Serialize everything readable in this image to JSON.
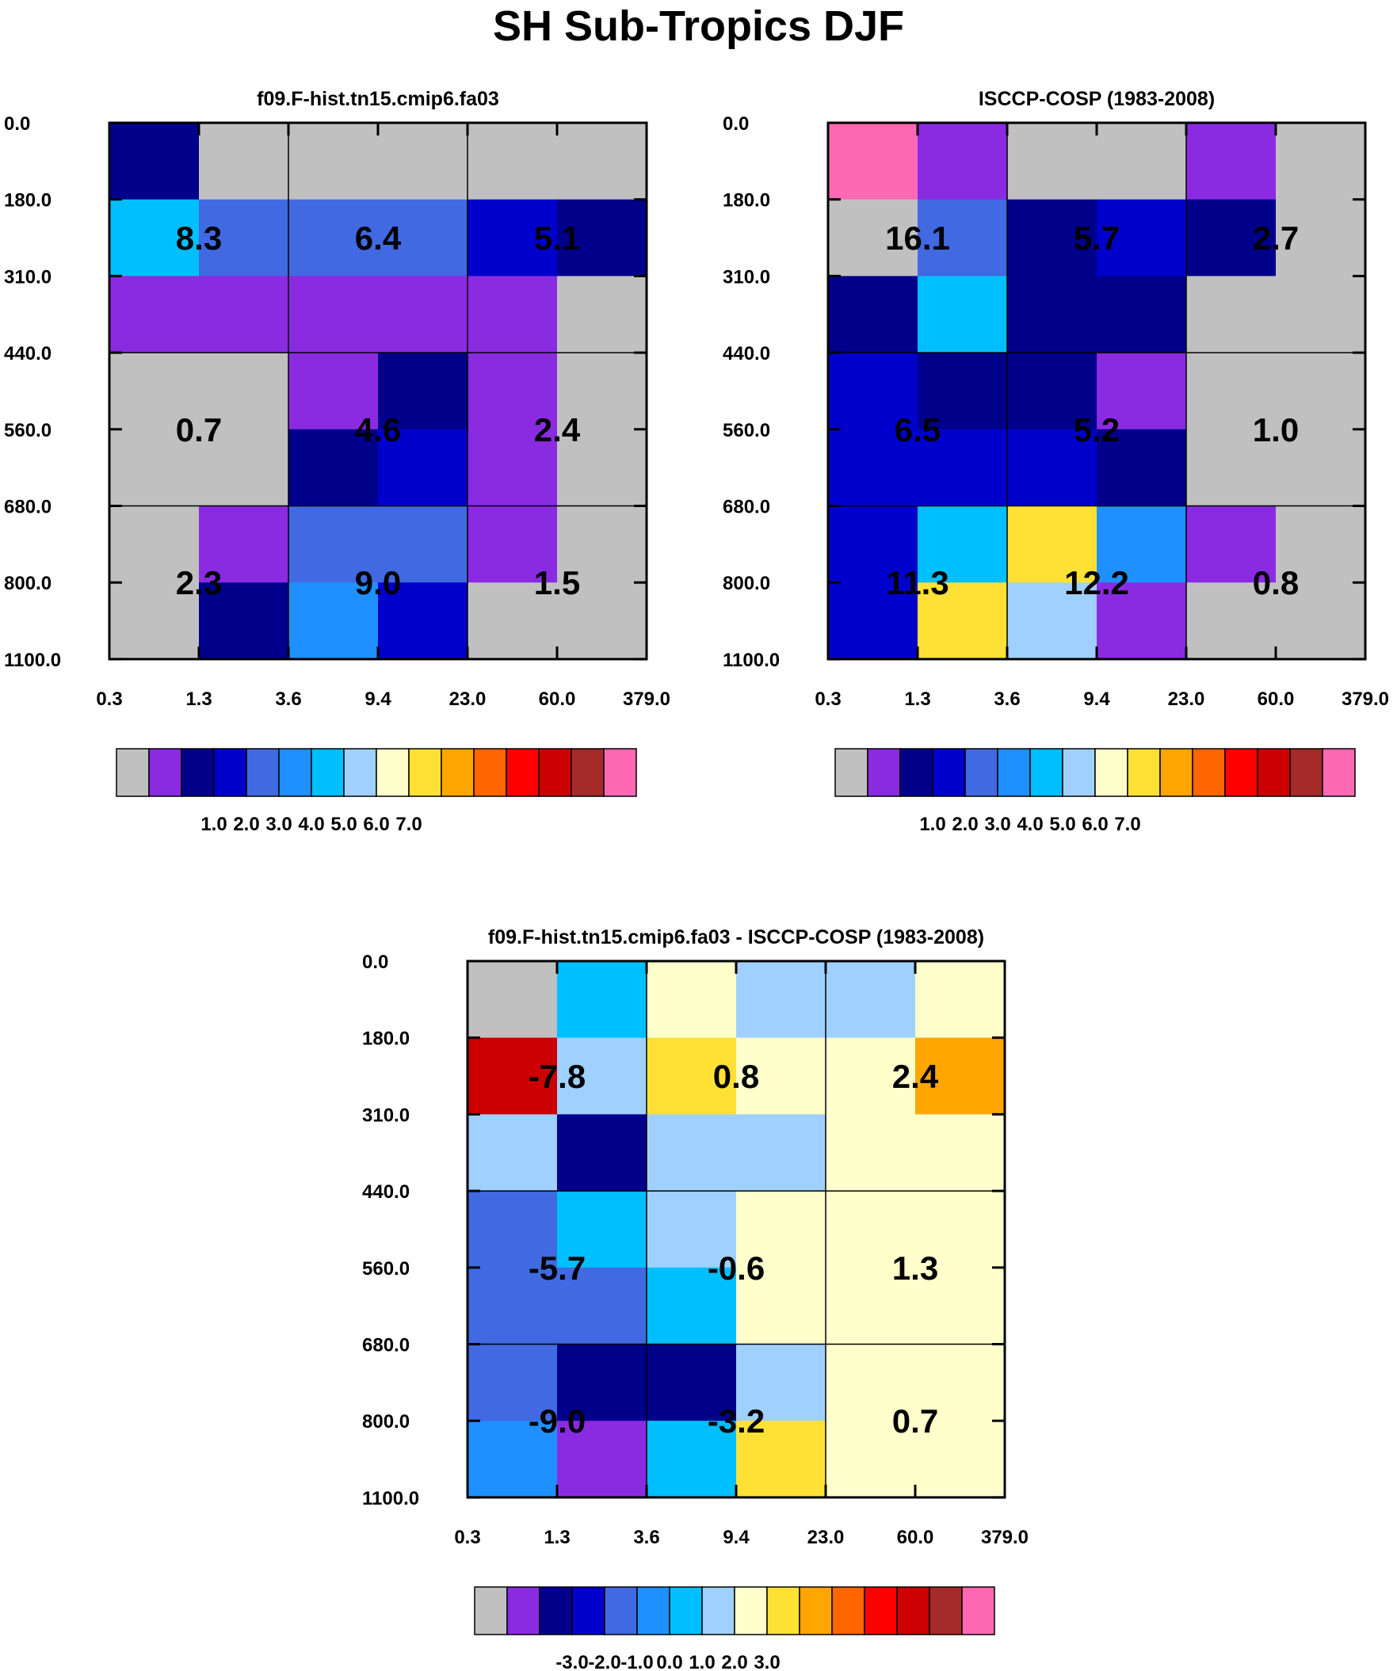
{
  "figure": {
    "title": "SH Sub-Tropics DJF"
  },
  "colors": {
    "palette": [
      "#c0c0c0",
      "#8a2be2",
      "#00008b",
      "#0000cd",
      "#4169e1",
      "#1e90ff",
      "#00bfff",
      "#a0d0ff",
      "#ffffcc",
      "#ffe135",
      "#ffa500",
      "#ff6600",
      "#ff0000",
      "#cc0000",
      "#a52a2a",
      "#ff69b4"
    ]
  },
  "chart_data": [
    {
      "type": "heatmap",
      "title": "f09.F-hist.tn15.cmip6.fa03",
      "xlabel": "",
      "ylabel": "",
      "x_ticks": [
        "0.3",
        "1.3",
        "3.6",
        "9.4",
        "23.0",
        "60.0",
        "379.0"
      ],
      "y_ticks": [
        "0.0",
        "180.0",
        "310.0",
        "440.0",
        "560.0",
        "680.0",
        "800.0",
        "1100.0"
      ],
      "cell_color_index": [
        [
          2,
          0,
          0,
          0,
          0,
          0
        ],
        [
          6,
          4,
          4,
          4,
          3,
          2
        ],
        [
          1,
          1,
          1,
          1,
          1,
          0
        ],
        [
          0,
          0,
          1,
          2,
          1,
          0
        ],
        [
          0,
          0,
          2,
          3,
          1,
          0
        ],
        [
          0,
          1,
          4,
          4,
          1,
          0
        ],
        [
          0,
          2,
          5,
          3,
          0,
          0
        ]
      ],
      "block_labels": [
        {
          "text": "8.3",
          "col": 1,
          "row": 1
        },
        {
          "text": "6.4",
          "col": 3,
          "row": 1
        },
        {
          "text": "5.1",
          "col": 5,
          "row": 1
        },
        {
          "text": "0.7",
          "col": 1,
          "row": 3.5
        },
        {
          "text": "4.6",
          "col": 3,
          "row": 3.5
        },
        {
          "text": "2.4",
          "col": 5,
          "row": 3.5
        },
        {
          "text": "2.3",
          "col": 1,
          "row": 5.5
        },
        {
          "text": "9.0",
          "col": 3,
          "row": 5.5
        },
        {
          "text": "1.5",
          "col": 5,
          "row": 5.5
        }
      ],
      "colorbar_labels": [
        "1.0",
        "2.0",
        "3.0",
        "4.0",
        "5.0",
        "6.0",
        "7.0"
      ]
    },
    {
      "type": "heatmap",
      "title": "ISCCP-COSP (1983-2008)",
      "xlabel": "",
      "ylabel": "",
      "x_ticks": [
        "0.3",
        "1.3",
        "3.6",
        "9.4",
        "23.0",
        "60.0",
        "379.0"
      ],
      "y_ticks": [
        "0.0",
        "180.0",
        "310.0",
        "440.0",
        "560.0",
        "680.0",
        "800.0",
        "1100.0"
      ],
      "cell_color_index": [
        [
          15,
          1,
          0,
          0,
          1,
          0
        ],
        [
          0,
          4,
          2,
          3,
          2,
          0
        ],
        [
          2,
          6,
          2,
          2,
          0,
          0
        ],
        [
          3,
          2,
          2,
          1,
          0,
          0
        ],
        [
          3,
          3,
          3,
          2,
          0,
          0
        ],
        [
          3,
          6,
          9,
          5,
          1,
          0
        ],
        [
          3,
          9,
          7,
          1,
          0,
          0
        ]
      ],
      "block_labels": [
        {
          "text": "16.1",
          "col": 1,
          "row": 1
        },
        {
          "text": "5.7",
          "col": 3,
          "row": 1
        },
        {
          "text": "2.7",
          "col": 5,
          "row": 1
        },
        {
          "text": "6.5",
          "col": 1,
          "row": 3.5
        },
        {
          "text": "5.2",
          "col": 3,
          "row": 3.5
        },
        {
          "text": "1.0",
          "col": 5,
          "row": 3.5
        },
        {
          "text": "11.3",
          "col": 1,
          "row": 5.5
        },
        {
          "text": "12.2",
          "col": 3,
          "row": 5.5
        },
        {
          "text": "0.8",
          "col": 5,
          "row": 5.5
        }
      ],
      "colorbar_labels": [
        "1.0",
        "2.0",
        "3.0",
        "4.0",
        "5.0",
        "6.0",
        "7.0"
      ]
    },
    {
      "type": "heatmap",
      "title": "f09.F-hist.tn15.cmip6.fa03 - ISCCP-COSP (1983-2008)",
      "xlabel": "",
      "ylabel": "",
      "x_ticks": [
        "0.3",
        "1.3",
        "3.6",
        "9.4",
        "23.0",
        "60.0",
        "379.0"
      ],
      "y_ticks": [
        "0.0",
        "180.0",
        "310.0",
        "440.0",
        "560.0",
        "680.0",
        "800.0",
        "1100.0"
      ],
      "cell_color_index": [
        [
          0,
          6,
          8,
          7,
          7,
          8
        ],
        [
          13,
          7,
          9,
          8,
          8,
          10
        ],
        [
          7,
          2,
          7,
          7,
          8,
          8
        ],
        [
          4,
          6,
          7,
          8,
          8,
          8
        ],
        [
          4,
          4,
          6,
          8,
          8,
          8
        ],
        [
          4,
          2,
          2,
          7,
          8,
          8
        ],
        [
          5,
          1,
          6,
          9,
          8,
          8
        ]
      ],
      "block_labels": [
        {
          "text": "-7.8",
          "col": 1,
          "row": 1
        },
        {
          "text": "0.8",
          "col": 3,
          "row": 1
        },
        {
          "text": "2.4",
          "col": 5,
          "row": 1
        },
        {
          "text": "-5.7",
          "col": 1,
          "row": 3.5
        },
        {
          "text": "-0.6",
          "col": 3,
          "row": 3.5
        },
        {
          "text": "1.3",
          "col": 5,
          "row": 3.5
        },
        {
          "text": "-9.0",
          "col": 1,
          "row": 5.5
        },
        {
          "text": "-3.2",
          "col": 3,
          "row": 5.5
        },
        {
          "text": "0.7",
          "col": 5,
          "row": 5.5
        }
      ],
      "colorbar_labels": [
        "-3.0",
        "-2.0",
        "-1.0",
        "0.0",
        "1.0",
        "2.0",
        "3.0"
      ]
    }
  ]
}
